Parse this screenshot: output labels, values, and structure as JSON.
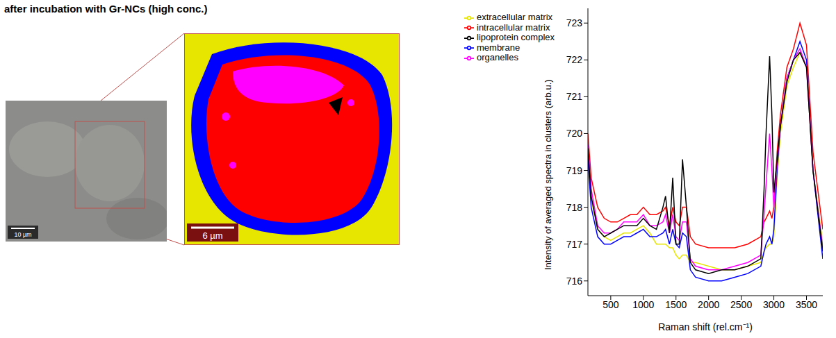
{
  "title": "after incubation with Gr-NCs (high conc.)",
  "micrograph": {
    "scale_bar": "10 µm"
  },
  "cluster_map": {
    "scale_bar": "6 µm"
  },
  "chart_data": {
    "type": "line",
    "x_label": "Raman shift (rel.cm⁻¹)",
    "y_label": "Intensity of averaged spectra in clusters (arb.u.)",
    "x": [
      150,
      200,
      300,
      400,
      500,
      600,
      700,
      800,
      900,
      1000,
      1100,
      1200,
      1300,
      1340,
      1400,
      1450,
      1500,
      1550,
      1600,
      1660,
      1720,
      1800,
      2000,
      2200,
      2400,
      2600,
      2800,
      2850,
      2880,
      2935,
      2970,
      3000,
      3050,
      3100,
      3200,
      3300,
      3400,
      3500,
      3600,
      3750
    ],
    "xlim": [
      150,
      3750
    ],
    "xticks": [
      500,
      1000,
      1500,
      2000,
      2500,
      3000,
      3500
    ],
    "ylim": [
      715.6,
      723.4
    ],
    "yticks": [
      716,
      717,
      718,
      719,
      720,
      721,
      722,
      723
    ],
    "grid": false,
    "legend": "upper left",
    "series": [
      {
        "name": "extracellular matrix",
        "color": "#e6e600",
        "values": [
          719.5,
          718.2,
          717.4,
          717.2,
          717.1,
          717.2,
          717.3,
          717.3,
          717.4,
          717.5,
          717.3,
          717.0,
          717.0,
          717.0,
          716.9,
          716.9,
          716.7,
          716.6,
          716.7,
          716.7,
          716.5,
          716.5,
          716.4,
          716.3,
          716.3,
          716.4,
          716.5,
          716.8,
          716.9,
          717.0,
          717.0,
          717.2,
          718.8,
          720.0,
          721.3,
          721.8,
          722.2,
          721.8,
          719.0,
          717.0
        ]
      },
      {
        "name": "membrane",
        "color": "#0000ff",
        "values": [
          719.3,
          718.0,
          717.2,
          717.0,
          717.0,
          717.1,
          717.2,
          717.2,
          717.3,
          717.4,
          717.2,
          717.2,
          717.3,
          717.4,
          717.0,
          717.4,
          717.0,
          716.9,
          717.3,
          717.2,
          716.3,
          716.1,
          716.0,
          716.0,
          716.1,
          716.2,
          716.4,
          716.8,
          717.0,
          717.2,
          717.0,
          717.4,
          719.0,
          720.2,
          721.5,
          722.0,
          722.5,
          722.0,
          719.0,
          716.6
        ]
      },
      {
        "name": "intracellular matrix",
        "color": "#ff0000",
        "values": [
          720.0,
          718.8,
          718.0,
          717.7,
          717.6,
          717.6,
          717.7,
          717.8,
          717.8,
          718.0,
          717.8,
          717.8,
          717.9,
          718.0,
          717.5,
          718.0,
          717.6,
          717.5,
          718.0,
          718.0,
          717.2,
          717.0,
          716.9,
          716.9,
          716.9,
          717.0,
          717.2,
          717.6,
          717.7,
          717.9,
          717.7,
          718.0,
          719.5,
          720.5,
          721.8,
          722.3,
          723.0,
          722.4,
          719.5,
          717.4
        ]
      },
      {
        "name": "organelles",
        "color": "#ff00ff",
        "values": [
          719.7,
          718.5,
          717.5,
          717.3,
          717.3,
          717.4,
          717.6,
          717.6,
          717.6,
          717.8,
          717.5,
          717.5,
          717.6,
          717.8,
          717.3,
          717.8,
          717.2,
          717.1,
          717.6,
          717.6,
          716.6,
          716.4,
          716.3,
          716.3,
          716.4,
          716.5,
          716.7,
          717.8,
          718.6,
          720.0,
          719.0,
          718.0,
          719.2,
          720.2,
          721.5,
          722.0,
          722.3,
          721.8,
          719.0,
          716.9
        ]
      },
      {
        "name": "lipoprotein complex",
        "color": "#000000",
        "values": [
          719.6,
          718.3,
          717.4,
          717.2,
          717.3,
          717.4,
          717.5,
          717.5,
          717.5,
          717.7,
          717.5,
          717.4,
          718.0,
          718.3,
          717.3,
          718.8,
          717.0,
          717.0,
          719.3,
          718.0,
          716.5,
          716.3,
          716.2,
          716.3,
          716.3,
          716.4,
          716.6,
          718.5,
          720.0,
          722.1,
          720.5,
          718.4,
          719.3,
          720.2,
          721.4,
          722.0,
          722.2,
          721.8,
          719.0,
          716.8
        ]
      }
    ]
  }
}
